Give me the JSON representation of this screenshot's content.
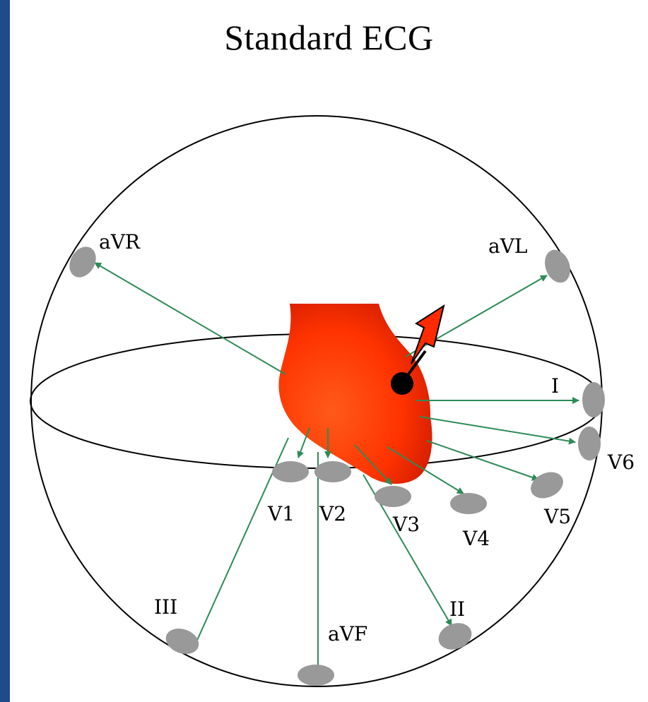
{
  "title": "Standard ECG",
  "labels": {
    "aVR": "aVR",
    "aVL": "aVL",
    "I": "I",
    "V6": "V6",
    "V5": "V5",
    "V4": "V4",
    "V3": "V3",
    "V2": "V2",
    "V1": "V1",
    "III": "III",
    "aVF": "aVF",
    "II": "II"
  },
  "colors": {
    "frame": "#1f4a8c",
    "heart": "#ff3300",
    "lead_arrow": "#2e8b57",
    "electrode": "#999999",
    "vector_arrow": "#ff2a00"
  }
}
